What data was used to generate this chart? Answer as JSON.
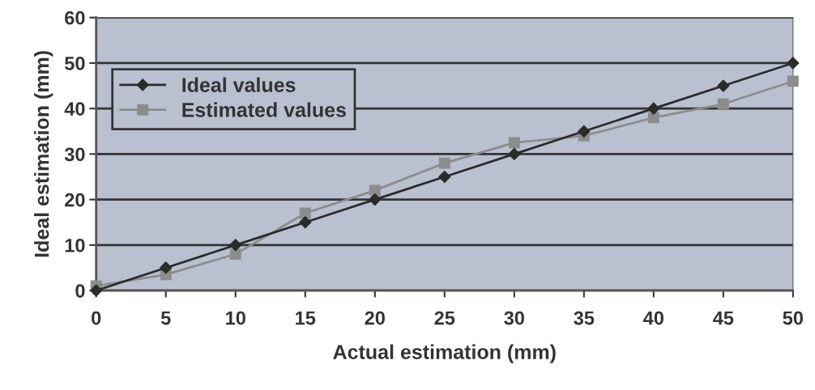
{
  "chart_data": {
    "type": "line",
    "xlabel": "Actual estimation (mm)",
    "ylabel": "Ideal estimation (mm)",
    "x": [
      0,
      5,
      10,
      15,
      20,
      25,
      30,
      35,
      40,
      45,
      50
    ],
    "series": [
      {
        "name": "Ideal values",
        "color": "#2b2b2b",
        "marker": "diamond",
        "values": [
          0,
          5,
          10,
          15,
          20,
          25,
          30,
          35,
          40,
          45,
          50
        ]
      },
      {
        "name": "Estimated values",
        "color": "#8c8c8c",
        "marker": "square",
        "values": [
          1,
          3.5,
          8,
          17,
          22,
          28,
          32.5,
          34,
          38,
          41,
          46
        ]
      }
    ],
    "xlim": [
      0,
      50
    ],
    "xticks": [
      0,
      5,
      10,
      15,
      20,
      25,
      30,
      35,
      40,
      45,
      50
    ],
    "ylim": [
      0,
      60
    ],
    "yticks": [
      0,
      10,
      20,
      30,
      40,
      50,
      60
    ],
    "grid": "y",
    "legend": "top left"
  }
}
